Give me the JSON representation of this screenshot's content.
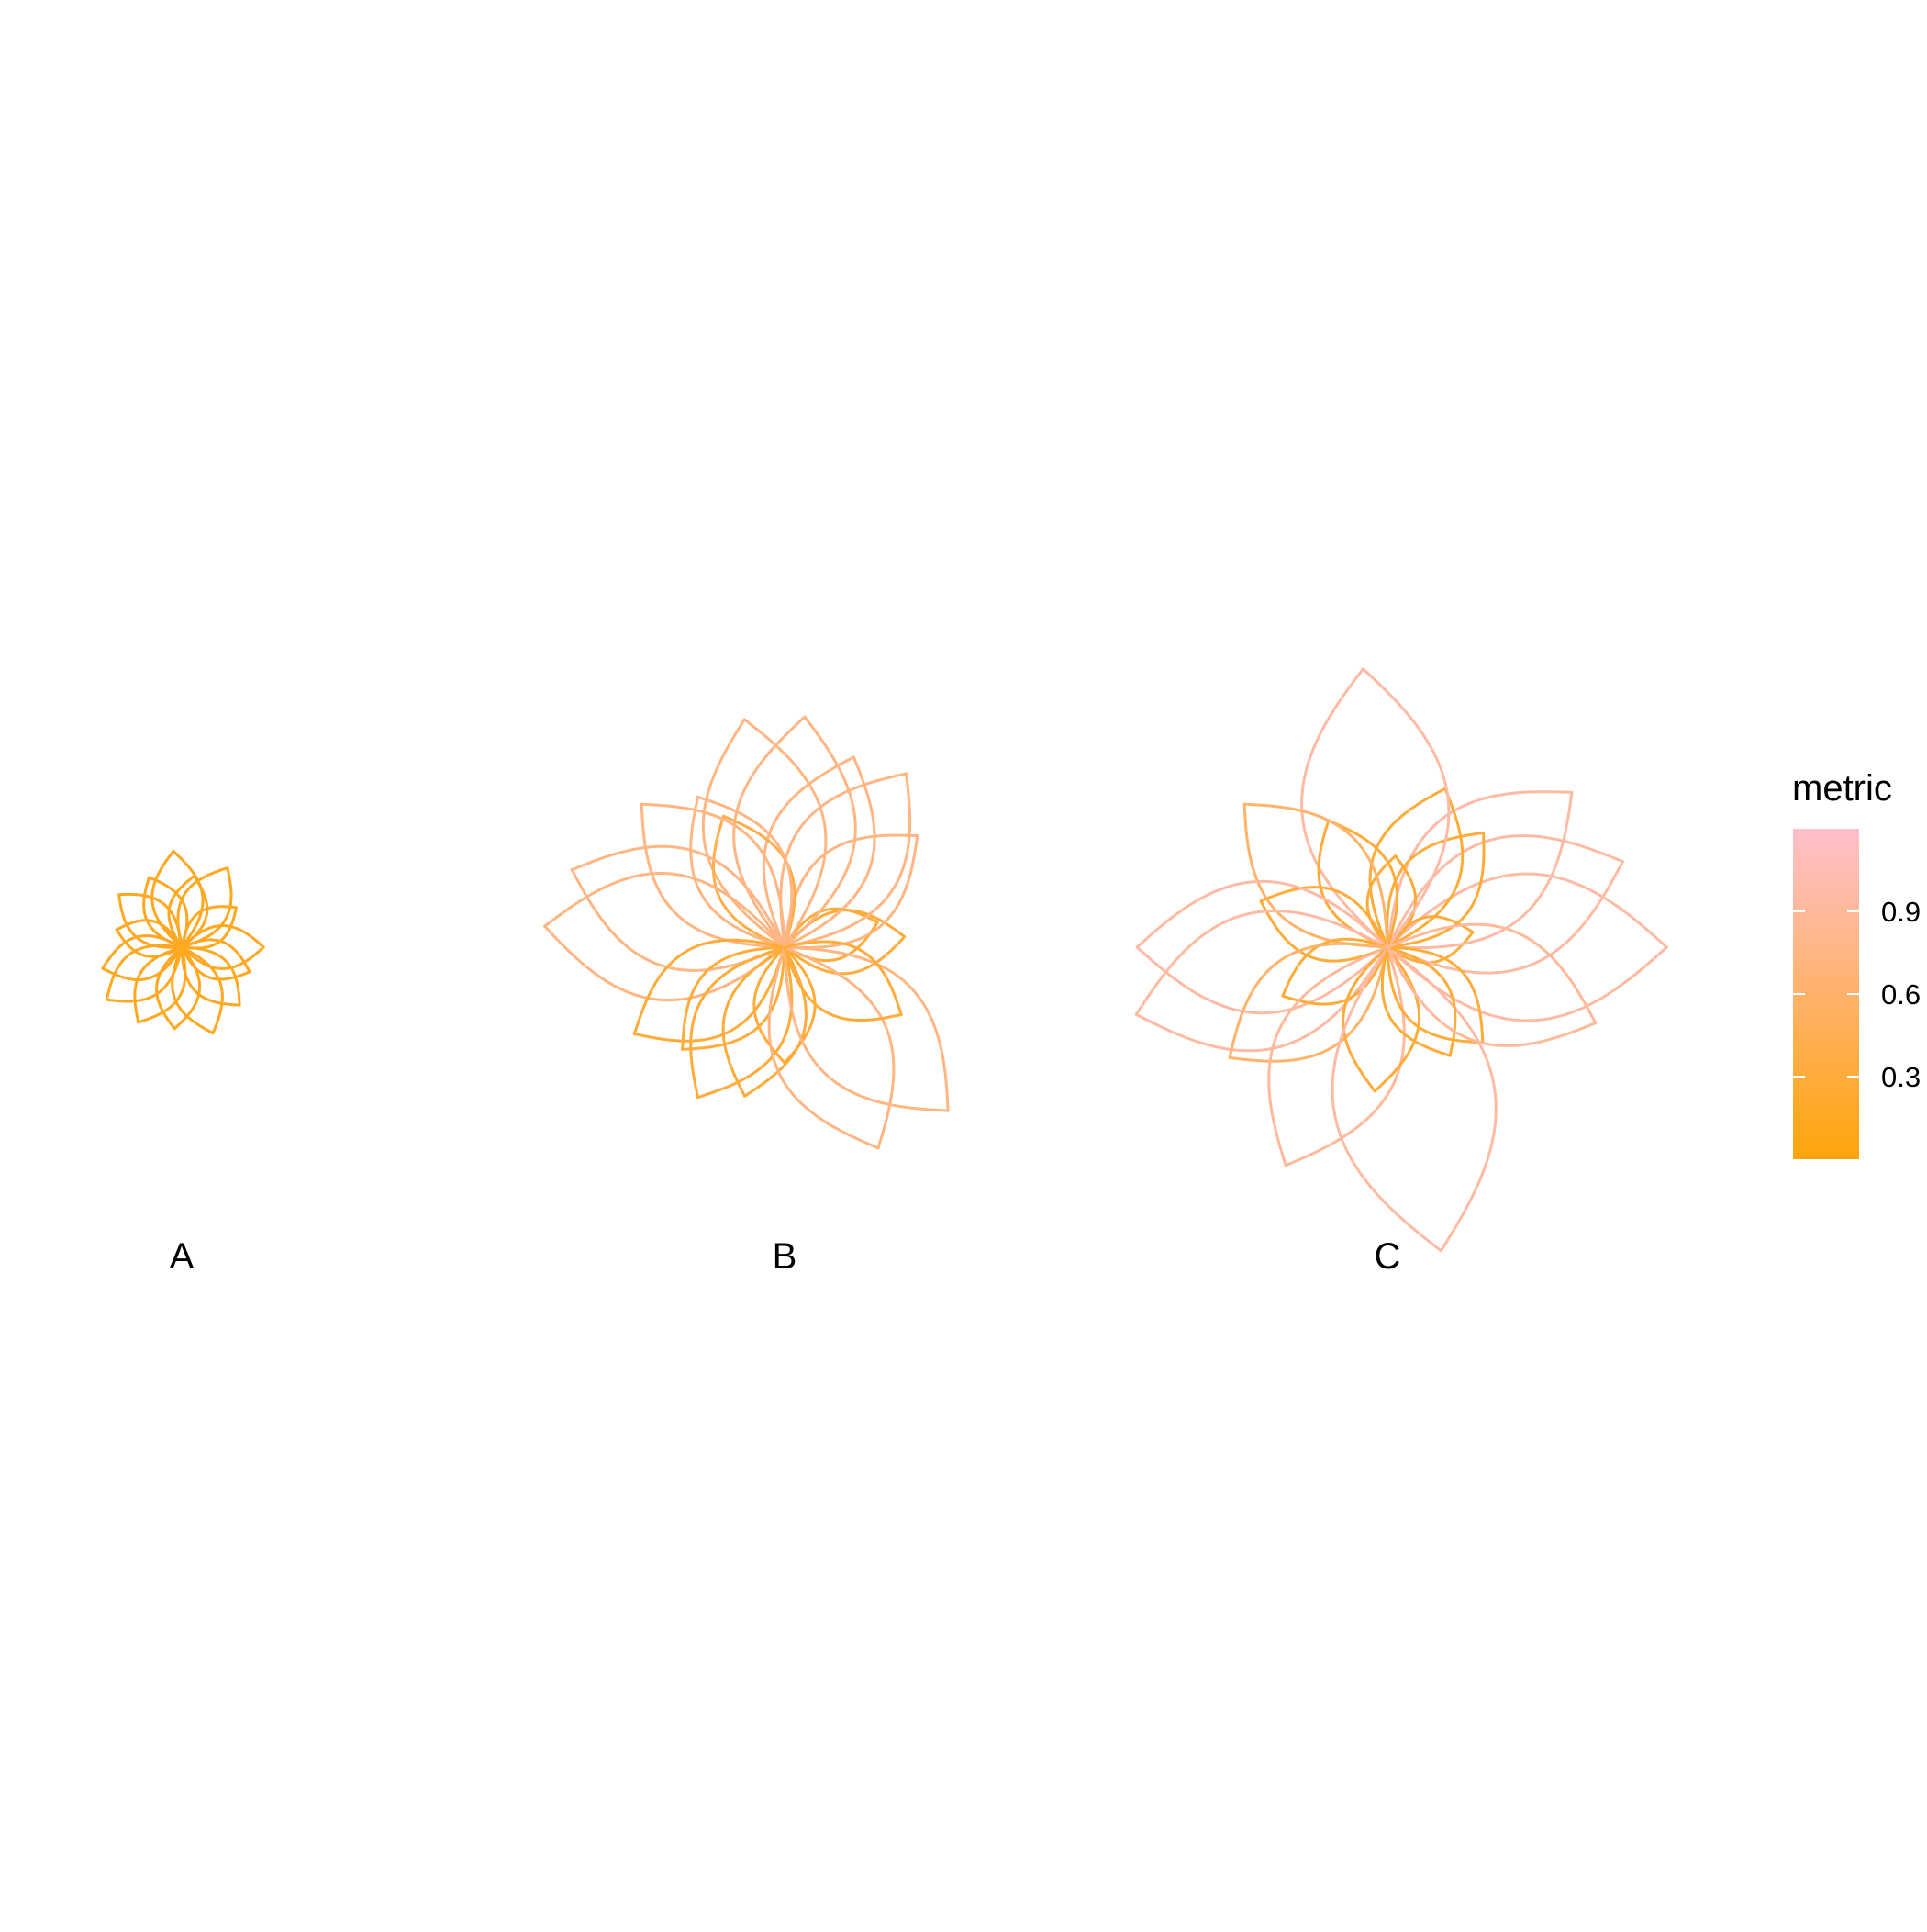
{
  "chart_data": {
    "type": "polar-petal",
    "panels": [
      {
        "label": "A",
        "petals": [
          {
            "angle": 0,
            "length": 0.85,
            "metric": 0.15
          },
          {
            "angle": 36,
            "length": 0.7,
            "metric": 0.15
          },
          {
            "angle": 60,
            "length": 0.95,
            "metric": 0.15
          },
          {
            "angle": 80,
            "length": 0.75,
            "metric": 0.15
          },
          {
            "angle": 95,
            "length": 1.0,
            "metric": 0.15
          },
          {
            "angle": 115,
            "length": 0.8,
            "metric": 0.15
          },
          {
            "angle": 140,
            "length": 0.85,
            "metric": 0.15
          },
          {
            "angle": 165,
            "length": 0.7,
            "metric": 0.15
          },
          {
            "angle": 195,
            "length": 0.85,
            "metric": 0.15
          },
          {
            "angle": 215,
            "length": 0.95,
            "metric": 0.15
          },
          {
            "angle": 240,
            "length": 0.9,
            "metric": 0.15
          },
          {
            "angle": 265,
            "length": 0.85,
            "metric": 0.15
          },
          {
            "angle": 290,
            "length": 0.95,
            "metric": 0.15
          },
          {
            "angle": 315,
            "length": 0.85,
            "metric": 0.15
          },
          {
            "angle": 340,
            "length": 0.75,
            "metric": 0.15
          }
        ]
      },
      {
        "label": "B",
        "petals": [
          {
            "angle": 5,
            "length": 1.25,
            "metric": 0.3
          },
          {
            "angle": 15,
            "length": 1.0,
            "metric": 0.3
          },
          {
            "angle": 40,
            "length": 1.8,
            "metric": 0.75
          },
          {
            "angle": 55,
            "length": 2.2,
            "metric": 0.75
          },
          {
            "angle": 70,
            "length": 2.1,
            "metric": 0.75
          },
          {
            "angle": 85,
            "length": 2.4,
            "metric": 0.75
          },
          {
            "angle": 100,
            "length": 2.4,
            "metric": 0.75
          },
          {
            "angle": 115,
            "length": 1.5,
            "metric": 0.4
          },
          {
            "angle": 120,
            "length": 1.8,
            "metric": 0.75
          },
          {
            "angle": 135,
            "length": 2.1,
            "metric": 0.75
          },
          {
            "angle": 160,
            "length": 2.35,
            "metric": 0.75
          },
          {
            "angle": 175,
            "length": 2.5,
            "metric": 0.75
          },
          {
            "angle": 210,
            "length": 1.8,
            "metric": 0.3
          },
          {
            "angle": 225,
            "length": 1.5,
            "metric": 0.3
          },
          {
            "angle": 240,
            "length": 1.8,
            "metric": 0.3
          },
          {
            "angle": 255,
            "length": 1.6,
            "metric": 0.3
          },
          {
            "angle": 270,
            "length": 1.2,
            "metric": 0.3
          },
          {
            "angle": 295,
            "length": 2.3,
            "metric": 0.75
          },
          {
            "angle": 315,
            "length": 2.4,
            "metric": 0.75
          },
          {
            "angle": 330,
            "length": 1.4,
            "metric": 0.3
          }
        ]
      },
      {
        "label": "C",
        "petals": [
          {
            "angle": 0,
            "length": 2.9,
            "metric": 0.95
          },
          {
            "angle": 10,
            "length": 0.9,
            "metric": 0.3
          },
          {
            "angle": 20,
            "length": 2.6,
            "metric": 0.95
          },
          {
            "angle": 40,
            "length": 2.5,
            "metric": 0.95
          },
          {
            "angle": 50,
            "length": 1.55,
            "metric": 0.3
          },
          {
            "angle": 70,
            "length": 1.75,
            "metric": 0.3
          },
          {
            "angle": 85,
            "length": 0.95,
            "metric": 0.3
          },
          {
            "angle": 95,
            "length": 2.9,
            "metric": 0.95
          },
          {
            "angle": 115,
            "length": 1.45,
            "metric": 0.3
          },
          {
            "angle": 135,
            "length": 2.1,
            "metric": 0.6
          },
          {
            "angle": 160,
            "length": 1.4,
            "metric": 0.3
          },
          {
            "angle": 180,
            "length": 2.6,
            "metric": 0.95
          },
          {
            "angle": 195,
            "length": 2.7,
            "metric": 0.95
          },
          {
            "angle": 205,
            "length": 1.2,
            "metric": 0.3
          },
          {
            "angle": 215,
            "length": 2.0,
            "metric": 0.6
          },
          {
            "angle": 245,
            "length": 2.5,
            "metric": 0.9
          },
          {
            "angle": 265,
            "length": 1.5,
            "metric": 0.3
          },
          {
            "angle": 280,
            "length": 3.2,
            "metric": 0.95
          },
          {
            "angle": 300,
            "length": 1.3,
            "metric": 0.3
          },
          {
            "angle": 315,
            "length": 1.4,
            "metric": 0.3
          },
          {
            "angle": 340,
            "length": 2.3,
            "metric": 0.9
          }
        ]
      }
    ],
    "legend": {
      "title": "metric",
      "position": "right",
      "colors": {
        "low": "#FFA50A",
        "high": "#FFC0CB"
      },
      "range": [
        0,
        1.2
      ],
      "breaks": [
        0.3,
        0.6,
        0.9
      ],
      "labels": [
        "0.3",
        "0.6",
        "0.9"
      ]
    },
    "grid": false,
    "axes": false
  }
}
